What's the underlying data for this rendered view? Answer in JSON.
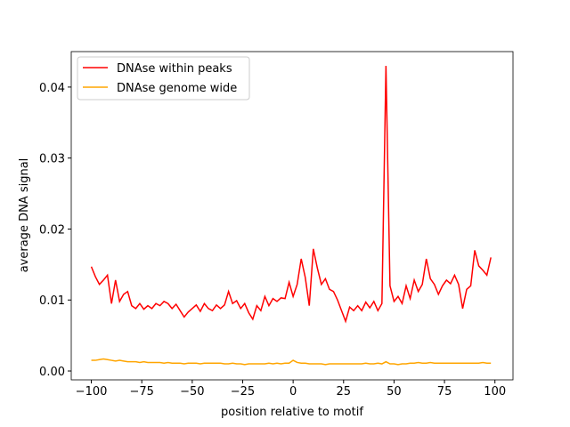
{
  "chart_data": {
    "type": "line",
    "xlabel": "position relative to motif",
    "ylabel": "average DNA signal",
    "x": [
      -100,
      -98,
      -96,
      -94,
      -92,
      -90,
      -88,
      -86,
      -84,
      -82,
      -80,
      -78,
      -76,
      -74,
      -72,
      -70,
      -68,
      -66,
      -64,
      -62,
      -60,
      -58,
      -56,
      -54,
      -52,
      -50,
      -48,
      -46,
      -44,
      -42,
      -40,
      -38,
      -36,
      -34,
      -32,
      -30,
      -28,
      -26,
      -24,
      -22,
      -20,
      -18,
      -16,
      -14,
      -12,
      -10,
      -8,
      -6,
      -4,
      -2,
      0,
      2,
      4,
      6,
      8,
      10,
      12,
      14,
      16,
      18,
      20,
      22,
      24,
      26,
      28,
      30,
      32,
      34,
      36,
      38,
      40,
      42,
      44,
      46,
      48,
      50,
      52,
      54,
      56,
      58,
      60,
      62,
      64,
      66,
      68,
      70,
      72,
      74,
      76,
      78,
      80,
      82,
      84,
      86,
      88,
      90,
      92,
      94,
      96,
      98
    ],
    "series": [
      {
        "name": "DNAse within peaks",
        "color": "#ff0000",
        "values": [
          0.0147,
          0.0133,
          0.0122,
          0.0128,
          0.0135,
          0.0095,
          0.0128,
          0.0098,
          0.0108,
          0.0112,
          0.0092,
          0.0088,
          0.0095,
          0.0087,
          0.0092,
          0.0088,
          0.0095,
          0.0092,
          0.0098,
          0.0095,
          0.0088,
          0.0094,
          0.0085,
          0.0076,
          0.0083,
          0.0088,
          0.0093,
          0.0084,
          0.0095,
          0.0088,
          0.0085,
          0.0093,
          0.0088,
          0.0093,
          0.0112,
          0.0095,
          0.0099,
          0.0088,
          0.0095,
          0.0082,
          0.0073,
          0.0092,
          0.0085,
          0.0105,
          0.0092,
          0.0102,
          0.0098,
          0.0103,
          0.0102,
          0.0125,
          0.0105,
          0.0122,
          0.0158,
          0.0132,
          0.0092,
          0.0172,
          0.0145,
          0.0122,
          0.013,
          0.0115,
          0.0112,
          0.01,
          0.0085,
          0.007,
          0.009,
          0.0085,
          0.0092,
          0.0085,
          0.0097,
          0.0089,
          0.0098,
          0.0085,
          0.0095,
          0.043,
          0.012,
          0.0098,
          0.0105,
          0.0095,
          0.012,
          0.0102,
          0.0128,
          0.0112,
          0.0122,
          0.0158,
          0.013,
          0.0122,
          0.0108,
          0.012,
          0.0128,
          0.0123,
          0.0135,
          0.0122,
          0.0088,
          0.0115,
          0.012,
          0.017,
          0.0148,
          0.0142,
          0.0135,
          0.016
        ]
      },
      {
        "name": "DNAse genome wide",
        "color": "#ffa500",
        "values": [
          0.0015,
          0.0015,
          0.0016,
          0.0017,
          0.0016,
          0.0015,
          0.0014,
          0.0015,
          0.0014,
          0.0013,
          0.0013,
          0.0013,
          0.0012,
          0.0013,
          0.0012,
          0.0012,
          0.0012,
          0.0012,
          0.0011,
          0.0012,
          0.0011,
          0.0011,
          0.0011,
          0.001,
          0.0011,
          0.0011,
          0.0011,
          0.001,
          0.0011,
          0.0011,
          0.0011,
          0.0011,
          0.0011,
          0.001,
          0.001,
          0.0011,
          0.001,
          0.001,
          0.0009,
          0.001,
          0.001,
          0.001,
          0.001,
          0.001,
          0.0011,
          0.001,
          0.0011,
          0.001,
          0.0011,
          0.0011,
          0.0015,
          0.0012,
          0.0011,
          0.0011,
          0.001,
          0.001,
          0.001,
          0.001,
          0.0009,
          0.001,
          0.001,
          0.001,
          0.001,
          0.001,
          0.001,
          0.001,
          0.001,
          0.001,
          0.0011,
          0.001,
          0.001,
          0.0011,
          0.001,
          0.0013,
          0.001,
          0.001,
          0.0009,
          0.001,
          0.001,
          0.0011,
          0.0011,
          0.0012,
          0.0011,
          0.0011,
          0.0012,
          0.0011,
          0.0011,
          0.0011,
          0.0011,
          0.0011,
          0.0011,
          0.0011,
          0.0011,
          0.0011,
          0.0011,
          0.0011,
          0.0011,
          0.0012,
          0.0011,
          0.0011
        ]
      }
    ],
    "xlim": [
      -109.95,
      108.95
    ],
    "ylim": [
      -0.00125,
      0.045
    ],
    "xticks": [
      {
        "value": -100,
        "label": "−100"
      },
      {
        "value": -75,
        "label": "−75"
      },
      {
        "value": -50,
        "label": "−50"
      },
      {
        "value": -25,
        "label": "−25"
      },
      0,
      25,
      50,
      75,
      100
    ],
    "yticks": [
      {
        "value": 0,
        "label": "0.00"
      },
      {
        "value": 0.01,
        "label": "0.01"
      },
      {
        "value": 0.02,
        "label": "0.02"
      },
      {
        "value": 0.03,
        "label": "0.03"
      },
      {
        "value": 0.04,
        "label": "0.04"
      }
    ],
    "legend": "upper left"
  }
}
